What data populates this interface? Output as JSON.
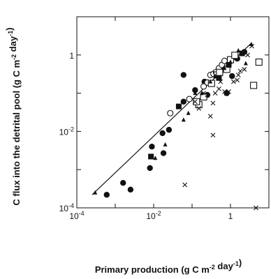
{
  "chart_data": {
    "type": "scatter",
    "title": "",
    "xlabel": "Primary production (g C m-2 day-1)",
    "ylabel": "C flux into the detrital pool (g C m-2 day-1)",
    "xscale": "log",
    "yscale": "log",
    "xlim": [
      0.0001,
      10
    ],
    "ylim": [
      0.0001,
      10
    ],
    "x_ticks": [
      {
        "value": 0.0001,
        "base": "10",
        "exp": "-4"
      },
      {
        "value": 0.01,
        "base": "10",
        "exp": "-2"
      },
      {
        "value": 1,
        "base": "1",
        "exp": ""
      }
    ],
    "y_ticks": [
      {
        "value": 0.0001,
        "base": "10",
        "exp": "-4"
      },
      {
        "value": 0.01,
        "base": "10",
        "exp": "-2"
      },
      {
        "value": 1,
        "base": "1",
        "exp": ""
      }
    ],
    "fit_line": {
      "x": [
        0.00025,
        3.6
      ],
      "y": [
        0.00022,
        2.1
      ]
    },
    "series": [
      {
        "marker": "filled-circle",
        "points": [
          [
            0.0006,
            0.00022
          ],
          [
            0.0016,
            0.00045
          ],
          [
            0.0025,
            0.0003
          ],
          [
            0.008,
            0.0011
          ],
          [
            0.018,
            0.0027
          ],
          [
            0.009,
            0.004
          ],
          [
            0.017,
            0.009
          ],
          [
            0.025,
            0.011
          ],
          [
            0.06,
            0.06
          ],
          [
            0.12,
            0.12
          ],
          [
            0.21,
            0.2
          ],
          [
            0.25,
            0.09
          ],
          [
            0.32,
            0.18
          ],
          [
            0.5,
            0.32
          ],
          [
            0.65,
            0.45
          ],
          [
            0.8,
            0.1
          ],
          [
            1.1,
            0.28
          ],
          [
            1.5,
            0.8
          ],
          [
            2.3,
            1.2
          ],
          [
            0.06,
            0.3
          ]
        ]
      },
      {
        "marker": "open-circle",
        "points": [
          [
            0.2,
            0.15
          ],
          [
            0.25,
            0.19
          ],
          [
            0.3,
            0.3
          ],
          [
            0.36,
            0.32
          ],
          [
            0.42,
            0.36
          ],
          [
            0.5,
            0.45
          ],
          [
            0.6,
            0.55
          ],
          [
            0.7,
            0.7
          ],
          [
            0.027,
            0.03
          ],
          [
            0.085,
            0.07
          ]
        ]
      },
      {
        "marker": "open-square",
        "points": [
          [
            0.15,
            0.05
          ],
          [
            0.2,
            0.08
          ],
          [
            0.32,
            0.18
          ],
          [
            0.45,
            0.3
          ],
          [
            0.52,
            0.35
          ],
          [
            0.8,
            0.42
          ],
          [
            1.0,
            0.75
          ],
          [
            1.3,
            0.98
          ],
          [
            4.0,
            0.16
          ],
          [
            5.5,
            0.65
          ],
          [
            0.13,
            0.06
          ]
        ]
      },
      {
        "marker": "filled-square",
        "points": [
          [
            0.0085,
            0.0022
          ],
          [
            0.045,
            0.045
          ],
          [
            0.5,
            0.25
          ],
          [
            0.9,
            0.55
          ],
          [
            2.0,
            1.1
          ]
        ]
      },
      {
        "marker": "triangle",
        "points": [
          [
            0.0003,
            0.00025
          ],
          [
            0.011,
            0.002
          ],
          [
            0.02,
            0.0045
          ],
          [
            0.06,
            0.02
          ],
          [
            0.08,
            0.03
          ],
          [
            0.12,
            0.1
          ],
          [
            0.18,
            0.1
          ],
          [
            0.3,
            0.2
          ],
          [
            0.4,
            0.28
          ],
          [
            0.7,
            0.45
          ],
          [
            1.0,
            0.65
          ],
          [
            1.6,
            1.3
          ],
          [
            3.5,
            1.9
          ],
          [
            2.5,
            0.6
          ]
        ]
      },
      {
        "marker": "cross",
        "points": [
          [
            0.2,
            0.1
          ],
          [
            0.25,
            0.09
          ],
          [
            0.4,
            0.1
          ],
          [
            0.5,
            0.13
          ],
          [
            0.55,
            0.2
          ],
          [
            0.7,
            0.11
          ],
          [
            0.9,
            0.11
          ],
          [
            1.2,
            0.2
          ],
          [
            1.5,
            0.22
          ],
          [
            1.8,
            0.38
          ],
          [
            2.3,
            0.42
          ],
          [
            0.3,
            0.025
          ],
          [
            0.15,
            0.04
          ],
          [
            0.35,
            0.008
          ],
          [
            0.35,
            0.055
          ],
          [
            0.78,
            0.1
          ],
          [
            1.6,
            0.3
          ],
          [
            2.8,
            1.0
          ],
          [
            3.6,
            1.7
          ],
          [
            0.12,
            0.06
          ],
          [
            0.065,
            0.0004
          ],
          [
            4.6,
            0.0001
          ]
        ]
      }
    ]
  }
}
